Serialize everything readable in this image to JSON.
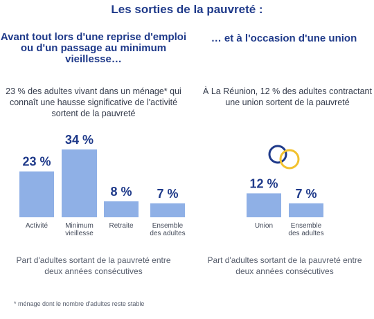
{
  "title": "Les sorties de la pauvreté :",
  "left": {
    "subtitle": "Avant tout lors d'une reprise d'emploi ou d'un passage au minimum vieillesse…",
    "description": "23 % des adultes vivant dans un ménage* qui connaît une hausse significative de l'activité sortent de la pauvreté",
    "caption": "Part d'adultes sortant de la pauvreté entre deux années consécutives"
  },
  "right": {
    "subtitle": "… et à l'occasion d'une union",
    "description": "À La Réunion, 12 % des adultes contractant une union sortent de la pauvreté",
    "caption": "Part d'adultes sortant de la pauvreté entre deux années consécutives",
    "icon": "two-rings-icon",
    "ring_colors": [
      "#1f3a8a",
      "#f2c12e"
    ]
  },
  "footnote": "* ménage dont le nombre d'adultes reste stable",
  "colors": {
    "bar": "#8fb0e6",
    "label": "#1f3a8a"
  },
  "chart_data": [
    {
      "type": "bar",
      "categories": [
        "Activité",
        "Minimum vieillesse",
        "Retraite",
        "Ensemble des adultes"
      ],
      "category_lines": [
        [
          "Activité"
        ],
        [
          "Minimum",
          "vieillesse"
        ],
        [
          "Retraite"
        ],
        [
          "Ensemble",
          "des adultes"
        ]
      ],
      "values": [
        23,
        34,
        8,
        7
      ],
      "value_labels": [
        "23 %",
        "34 %",
        "8 %",
        "7 %"
      ],
      "unit": "%",
      "ylim": [
        0,
        34
      ],
      "grid": false,
      "legend": "none"
    },
    {
      "type": "bar",
      "categories": [
        "Union",
        "Ensemble des adultes"
      ],
      "category_lines": [
        [
          "Union"
        ],
        [
          "Ensemble",
          "des adultes"
        ]
      ],
      "values": [
        12,
        7
      ],
      "value_labels": [
        "12 %",
        "7 %"
      ],
      "unit": "%",
      "ylim": [
        0,
        34
      ],
      "grid": false,
      "legend": "none"
    }
  ]
}
